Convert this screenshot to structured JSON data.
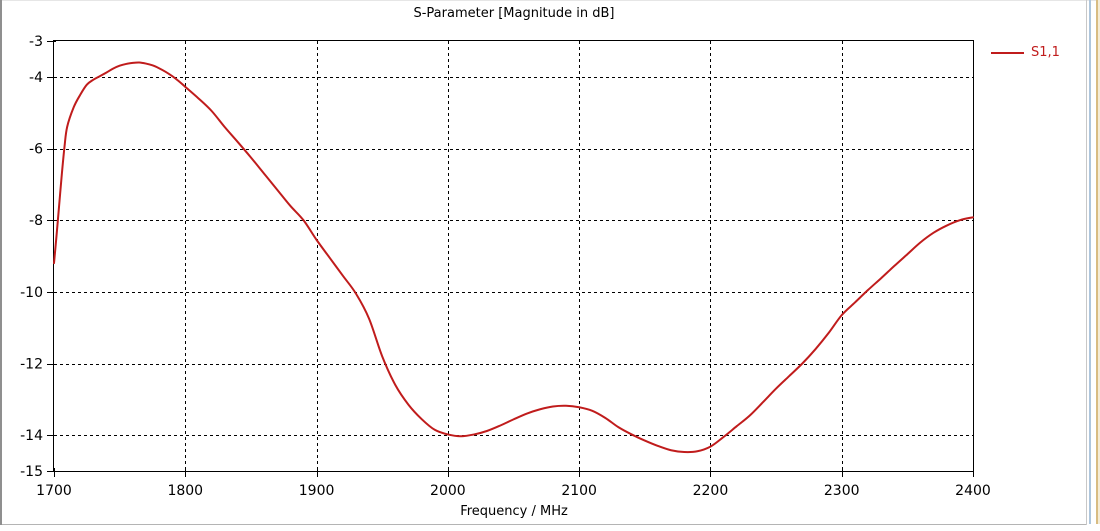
{
  "chart_data": {
    "type": "line",
    "title": "S-Parameter [Magnitude in dB]",
    "xlabel": "Frequency / MHz",
    "ylabel": "",
    "xlim": [
      1700,
      2400
    ],
    "ylim": [
      -15,
      -3
    ],
    "x_ticks": [
      1700,
      1800,
      1900,
      2000,
      2100,
      2200,
      2300,
      2400
    ],
    "y_ticks": [
      -3,
      -4,
      -6,
      -8,
      -10,
      -12,
      -14,
      -15
    ],
    "grid": "dashed",
    "legend_position": "top-right-outside",
    "series": [
      {
        "name": "S1,1",
        "color": "#c01c1c",
        "points": [
          [
            1700,
            -9.2
          ],
          [
            1702,
            -8.4
          ],
          [
            1704,
            -7.55
          ],
          [
            1706,
            -6.7
          ],
          [
            1708,
            -5.95
          ],
          [
            1710,
            -5.4
          ],
          [
            1715,
            -4.85
          ],
          [
            1720,
            -4.5
          ],
          [
            1725,
            -4.22
          ],
          [
            1730,
            -4.08
          ],
          [
            1735,
            -3.98
          ],
          [
            1740,
            -3.88
          ],
          [
            1745,
            -3.77
          ],
          [
            1750,
            -3.69
          ],
          [
            1755,
            -3.64
          ],
          [
            1760,
            -3.61
          ],
          [
            1765,
            -3.6
          ],
          [
            1770,
            -3.63
          ],
          [
            1775,
            -3.68
          ],
          [
            1780,
            -3.76
          ],
          [
            1785,
            -3.86
          ],
          [
            1790,
            -3.98
          ],
          [
            1795,
            -4.12
          ],
          [
            1800,
            -4.28
          ],
          [
            1810,
            -4.6
          ],
          [
            1820,
            -4.95
          ],
          [
            1830,
            -5.4
          ],
          [
            1840,
            -5.82
          ],
          [
            1850,
            -6.25
          ],
          [
            1860,
            -6.7
          ],
          [
            1870,
            -7.15
          ],
          [
            1880,
            -7.6
          ],
          [
            1890,
            -8.0
          ],
          [
            1900,
            -8.55
          ],
          [
            1910,
            -9.05
          ],
          [
            1920,
            -9.55
          ],
          [
            1930,
            -10.05
          ],
          [
            1940,
            -10.75
          ],
          [
            1950,
            -11.8
          ],
          [
            1960,
            -12.6
          ],
          [
            1970,
            -13.15
          ],
          [
            1980,
            -13.55
          ],
          [
            1990,
            -13.85
          ],
          [
            2000,
            -13.98
          ],
          [
            2010,
            -14.03
          ],
          [
            2020,
            -13.98
          ],
          [
            2030,
            -13.88
          ],
          [
            2040,
            -13.73
          ],
          [
            2050,
            -13.56
          ],
          [
            2060,
            -13.4
          ],
          [
            2070,
            -13.28
          ],
          [
            2080,
            -13.2
          ],
          [
            2090,
            -13.18
          ],
          [
            2100,
            -13.22
          ],
          [
            2110,
            -13.32
          ],
          [
            2120,
            -13.52
          ],
          [
            2130,
            -13.78
          ],
          [
            2140,
            -13.98
          ],
          [
            2150,
            -14.15
          ],
          [
            2160,
            -14.3
          ],
          [
            2170,
            -14.42
          ],
          [
            2180,
            -14.47
          ],
          [
            2190,
            -14.45
          ],
          [
            2200,
            -14.32
          ],
          [
            2210,
            -14.05
          ],
          [
            2220,
            -13.75
          ],
          [
            2230,
            -13.45
          ],
          [
            2240,
            -13.08
          ],
          [
            2250,
            -12.7
          ],
          [
            2260,
            -12.35
          ],
          [
            2270,
            -12.0
          ],
          [
            2280,
            -11.6
          ],
          [
            2290,
            -11.15
          ],
          [
            2300,
            -10.65
          ],
          [
            2310,
            -10.3
          ],
          [
            2320,
            -9.95
          ],
          [
            2330,
            -9.62
          ],
          [
            2340,
            -9.28
          ],
          [
            2350,
            -8.95
          ],
          [
            2360,
            -8.62
          ],
          [
            2370,
            -8.35
          ],
          [
            2380,
            -8.15
          ],
          [
            2390,
            -8.0
          ],
          [
            2400,
            -7.92
          ]
        ]
      }
    ]
  },
  "colors": {
    "axis": "#000000",
    "grid": "#000000",
    "text": "#000000",
    "curve": "#c01c1c",
    "legend_text": "#c01c1c",
    "plot_bg": "#ffffff"
  }
}
